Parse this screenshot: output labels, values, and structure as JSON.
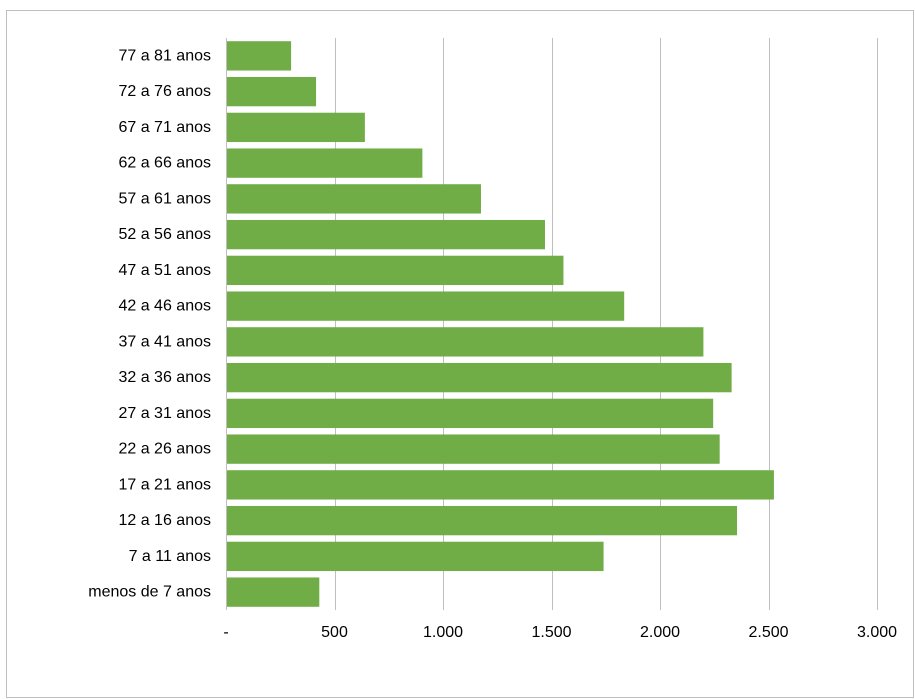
{
  "colors": {
    "bar": "#70ad47",
    "grid": "#bfbfbf",
    "axis": "#bfbfbf",
    "text": "#000000",
    "border": "#bfbfbf"
  },
  "chart_data": {
    "type": "bar",
    "orientation": "horizontal",
    "title": "",
    "xlabel": "",
    "ylabel": "",
    "grid": true,
    "legend": "none",
    "xlim": [
      0,
      3000
    ],
    "x_ticks": [
      0,
      500,
      1000,
      1500,
      2000,
      2500,
      3000
    ],
    "x_tick_labels": [
      "-",
      "500",
      "1.000",
      "1.500",
      "2.000",
      "2.500",
      "3.000"
    ],
    "categories": [
      "77 a 81 anos",
      "72 a 76 anos",
      "67 a 71 anos",
      "62 a 66 anos",
      "57 a 61 anos",
      "52 a 56 anos",
      "47 a 51 anos",
      "42 a 46 anos",
      "37 a 41 anos",
      "32 a 36 anos",
      "27 a 31 anos",
      "22 a 26 anos",
      "17 a 21 anos",
      "12 a 16 anos",
      "7 a 11 anos",
      "menos de 7 anos"
    ],
    "values": [
      300,
      415,
      640,
      905,
      1175,
      1470,
      1555,
      1835,
      2200,
      2330,
      2245,
      2275,
      2525,
      2355,
      1740,
      430
    ]
  }
}
